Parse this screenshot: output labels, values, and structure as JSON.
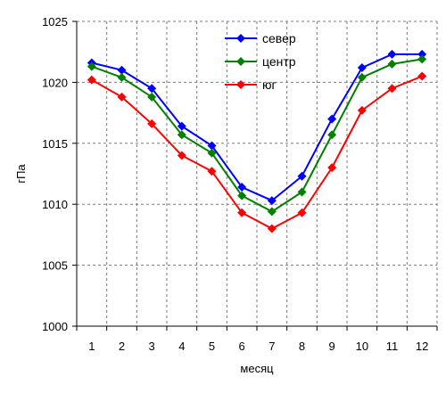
{
  "chart_data": {
    "type": "line",
    "title": "",
    "xlabel": "месяц",
    "ylabel": "гПа",
    "x": [
      1,
      2,
      3,
      4,
      5,
      6,
      7,
      8,
      9,
      10,
      11,
      12
    ],
    "ylim": [
      1000,
      1025
    ],
    "yticks": [
      1000,
      1005,
      1010,
      1015,
      1020,
      1025
    ],
    "grid": true,
    "legend_position": "top-center",
    "series": [
      {
        "name": "север",
        "color": "#0000ff",
        "marker": "diamond",
        "values": [
          1021.6,
          1021.0,
          1019.5,
          1016.4,
          1014.8,
          1011.4,
          1010.3,
          1012.3,
          1017.0,
          1021.2,
          1022.3,
          1022.3
        ]
      },
      {
        "name": "центр",
        "color": "#008000",
        "marker": "diamond",
        "values": [
          1021.3,
          1020.4,
          1018.8,
          1015.7,
          1014.2,
          1010.7,
          1009.4,
          1011.0,
          1015.7,
          1020.4,
          1021.5,
          1021.9
        ]
      },
      {
        "name": "юг",
        "color": "#ff0000",
        "marker": "diamond",
        "values": [
          1020.2,
          1018.8,
          1016.6,
          1014.0,
          1012.7,
          1009.3,
          1008.0,
          1009.3,
          1013.0,
          1017.7,
          1019.5,
          1020.5
        ]
      }
    ]
  }
}
